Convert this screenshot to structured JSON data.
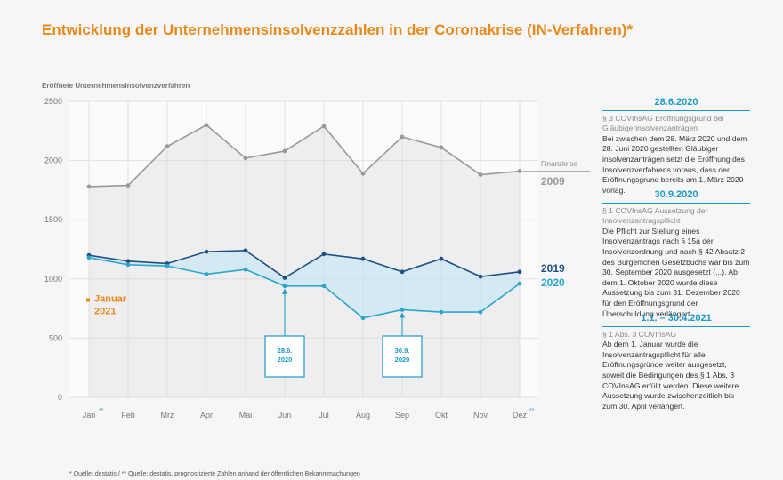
{
  "title": "Entwicklung der Unternehmensinsolvenzzahlen in der Coronakrise (IN-Verfahren)*",
  "colors": {
    "title": "#e8891c",
    "series_2009": "#999999",
    "series_2019": "#1e4f87",
    "series_2020": "#2aa6cf",
    "accent_blue": "#1a9ac8",
    "orange": "#e8891c"
  },
  "chart_data": {
    "type": "line",
    "ylabel": "Eröffnete Unternehmensinsolvenzverfahren",
    "ylim": [
      0,
      2500
    ],
    "yticks": [
      0,
      500,
      1000,
      1500,
      2000,
      2500
    ],
    "grid": true,
    "categories": [
      "Jan",
      "Feb",
      "Mrz",
      "Apr",
      "Mai",
      "Jun",
      "Jul",
      "Aug",
      "Sep",
      "Okt",
      "Nov",
      "Dez"
    ],
    "category_marks": {
      "0": "**",
      "11": "**"
    },
    "series": [
      {
        "name": "2009",
        "values": [
          1780,
          1790,
          2120,
          2300,
          2020,
          2080,
          2290,
          1890,
          2200,
          2110,
          1880,
          1910
        ]
      },
      {
        "name": "2019",
        "values": [
          1200,
          1150,
          1130,
          1230,
          1240,
          1010,
          1210,
          1170,
          1060,
          1170,
          1020,
          1060
        ]
      },
      {
        "name": "2020",
        "values": [
          1180,
          1120,
          1110,
          1040,
          1080,
          940,
          940,
          670,
          740,
          720,
          720,
          960
        ]
      }
    ],
    "series_labels": {
      "2009_caption": "Finanzkrise",
      "2009": "2009",
      "2019": "2019",
      "2020": "2020"
    },
    "point_marker": {
      "label_line1": "Januar",
      "label_line2": "2021",
      "value": 800
    },
    "annotations": [
      {
        "category": "Jun",
        "text": [
          "28.6.",
          "2020"
        ]
      },
      {
        "category": "Sep",
        "text": [
          "30.9.",
          "2020"
        ]
      }
    ]
  },
  "sidebar": [
    {
      "date": "28.6.2020",
      "subtitle": "§ 3 COVInsAG Eröffnungsgrund bei Gläubigerinsolvenzanträgen",
      "body": "Bei zwischen dem 28. März 2020 und dem 28. Juni 2020 gestellten Gläubiger insolvenzanträgen setzt die Eröffnung des Insolvenzverfahrens voraus, dass der Eröffnungsgrund bereits am 1. März 2020 vorlag."
    },
    {
      "date": "30.9.2020",
      "subtitle": "§ 1 COVInsAG Aussetzung der Insolvenzantragspflicht",
      "body": "Die Pflicht zur Stellung eines Insolvenzantrags nach § 15a der Insolvenzordnung und nach § 42 Absatz 2 des Bürgerlichen Gesetzbuchs war bis zum 30. September 2020 ausgesetzt (...). Ab dem 1. Oktober 2020 wurde diese Aussetzung bis zum 31. Dezember 2020 für den Eröffnungsgrund der Überschuldung verlängert."
    },
    {
      "date": "1.1. – 30.4.2021",
      "subtitle": "§ 1 Abs. 3 COVInsAG",
      "body": "Ab dem 1. Januar wurde die Insolvenzantragspflicht für alle Eröffnungsgründe weiter ausgesetzt, soweit die Bedingungen des § 1 Abs. 3 COVInsAG erfüllt werden. Diese weitere Aussetzung wurde zwischenzeitlich bis zum 30. April verlängert."
    }
  ],
  "footnote": "* Quelle: destatis / ** Quelle: destatis, prognostizierte Zahlen anhand der öffentlichen Bekanntmachungen"
}
